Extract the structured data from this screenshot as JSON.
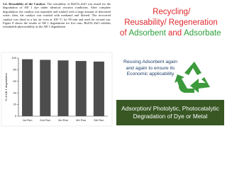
{
  "document": {
    "heading": "3.4. Reusability of the Catalyst.",
    "text": "The reusability of Bi2O3–ZnO was tested for the degradation of AB 1 dye under identical reaction conditions. After complete degradation, the catalyst was separated and washed with a large amount of deionized water; then, the catalyst was washed with methanol and filtered. The recovered catalyst was dried in a hot air oven at 100 °C for 90 min and used for second run. Figure 8 shows the results of AB 1 degradation for five runs. Bi2O3–ZnO exhibits remarkable photostability as the AB 1 degradation"
  },
  "chart_data": {
    "type": "bar",
    "y_label": "% of AB 1 degradation",
    "categories": [
      "1st Run",
      "2nd Run",
      "3rd Run",
      "4th Run",
      "5th Run"
    ],
    "values": [
      98,
      97,
      96,
      95,
      94
    ],
    "color": "#4d4d4d",
    "ylim": [
      0,
      100
    ],
    "yticks": [
      0,
      20,
      40,
      60,
      80,
      100
    ]
  },
  "slide": {
    "title": [
      {
        "text": "Recycling/ Reusability/",
        "color": "#e0262b"
      },
      {
        "text": "Regeneration of",
        "color": "#e0262b"
      },
      {
        "text": "Adsorbent",
        "color": "#2e9e3a"
      },
      {
        "text": "and",
        "color": "#e0262b"
      },
      {
        "text": "Adsorbate",
        "color": "#2e9e3a"
      }
    ],
    "callout": "Reusing Adsorbent again and again to ensure its Economic applicability",
    "banner": "Adsorption/ Photolytic, Photocatalytic Degradation of Dye or Metal"
  }
}
